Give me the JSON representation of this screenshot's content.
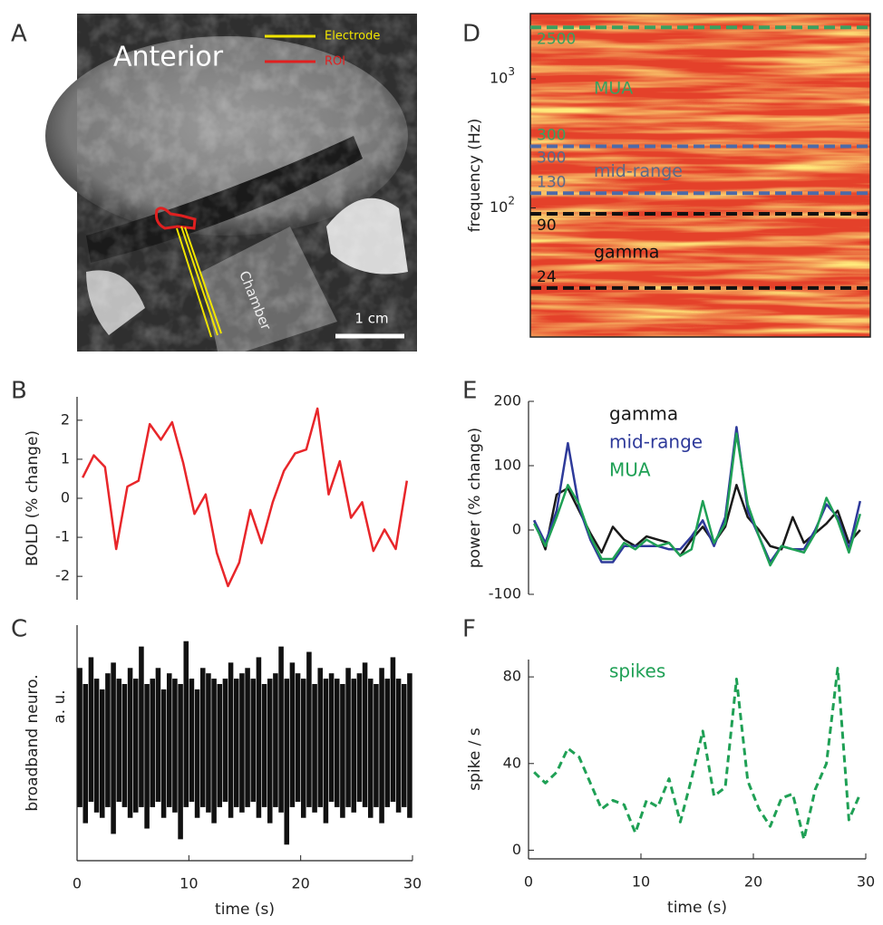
{
  "chart_data": [
    {
      "type": "image",
      "panel_label": "A",
      "title": "Anterior",
      "legend": [
        {
          "name": "Electrode",
          "color": "#f0e400"
        },
        {
          "name": "ROI",
          "color": "#e02020"
        }
      ],
      "annotation": "Chamber",
      "scale_bar": "1 cm"
    },
    {
      "type": "line",
      "panel_label": "B",
      "ylabel": "BOLD (% change)",
      "color": "#e8262a",
      "x": [
        0.5,
        1.5,
        2.5,
        3.5,
        4.5,
        5.5,
        6.5,
        7.5,
        8.5,
        9.5,
        10.5,
        11.5,
        12.5,
        13.5,
        14.5,
        15.5,
        16.5,
        17.5,
        18.5,
        19.5,
        20.5,
        21.5,
        22.5,
        23.5,
        24.5,
        25.5,
        26.5,
        27.5,
        28.5,
        29.5
      ],
      "values": [
        0.53,
        1.1,
        0.8,
        -1.3,
        0.3,
        0.45,
        1.9,
        1.5,
        1.95,
        0.9,
        -0.4,
        0.1,
        -1.4,
        -2.25,
        -1.65,
        -0.3,
        -1.15,
        -0.1,
        0.7,
        1.15,
        1.25,
        2.3,
        0.1,
        0.95,
        -0.5,
        -0.1,
        -1.35,
        -0.8,
        -1.3,
        0.45
      ],
      "xlim": [
        0,
        30
      ],
      "ylim": [
        -2.6,
        2.6
      ],
      "yticks": [
        -2,
        -1,
        0,
        1,
        2
      ]
    },
    {
      "type": "range",
      "panel_label": "C",
      "ylabel": "broadband neuro.",
      "unit_label": "a. u.",
      "xlabel": "time (s)",
      "color": "#111111",
      "x": [
        0.25,
        0.75,
        1.25,
        1.75,
        2.25,
        2.75,
        3.25,
        3.75,
        4.25,
        4.75,
        5.25,
        5.75,
        6.25,
        6.75,
        7.25,
        7.75,
        8.25,
        8.75,
        9.25,
        9.75,
        10.25,
        10.75,
        11.25,
        11.75,
        12.25,
        12.75,
        13.25,
        13.75,
        14.25,
        14.75,
        15.25,
        15.75,
        16.25,
        16.75,
        17.25,
        17.75,
        18.25,
        18.75,
        19.25,
        19.75,
        20.25,
        20.75,
        21.25,
        21.75,
        22.25,
        22.75,
        23.25,
        23.75,
        24.25,
        24.75,
        25.25,
        25.75,
        26.25,
        26.75,
        27.25,
        27.75,
        28.25,
        28.75,
        29.25,
        29.75
      ],
      "high": [
        0.7,
        0.55,
        0.8,
        0.6,
        0.5,
        0.65,
        0.75,
        0.6,
        0.55,
        0.7,
        0.6,
        0.9,
        0.55,
        0.6,
        0.7,
        0.5,
        0.65,
        0.6,
        0.55,
        0.95,
        0.6,
        0.5,
        0.7,
        0.65,
        0.6,
        0.55,
        0.6,
        0.75,
        0.6,
        0.65,
        0.7,
        0.6,
        0.8,
        0.55,
        0.6,
        0.65,
        0.9,
        0.6,
        0.75,
        0.65,
        0.6,
        0.85,
        0.55,
        0.7,
        0.6,
        0.65,
        0.6,
        0.55,
        0.7,
        0.6,
        0.65,
        0.75,
        0.6,
        0.55,
        0.7,
        0.6,
        0.8,
        0.6,
        0.55,
        0.65
      ],
      "low": [
        -0.6,
        -0.75,
        -0.55,
        -0.65,
        -0.7,
        -0.6,
        -0.85,
        -0.55,
        -0.6,
        -0.7,
        -0.65,
        -0.6,
        -0.8,
        -0.6,
        -0.55,
        -0.7,
        -0.6,
        -0.65,
        -0.9,
        -0.6,
        -0.55,
        -0.7,
        -0.6,
        -0.65,
        -0.75,
        -0.6,
        -0.55,
        -0.7,
        -0.6,
        -0.65,
        -0.6,
        -0.55,
        -0.7,
        -0.6,
        -0.75,
        -0.6,
        -0.65,
        -0.95,
        -0.6,
        -0.55,
        -0.7,
        -0.6,
        -0.65,
        -0.6,
        -0.75,
        -0.55,
        -0.6,
        -0.7,
        -0.6,
        -0.65,
        -0.55,
        -0.6,
        -0.7,
        -0.6,
        -0.75,
        -0.6,
        -0.55,
        -0.65,
        -0.6,
        -0.7
      ],
      "xlim": [
        0,
        30
      ],
      "ylim": [
        -1.1,
        1.1
      ],
      "xticks": [
        0,
        10,
        20,
        30
      ]
    },
    {
      "type": "heatmap",
      "panel_label": "D",
      "ylabel": "frequency (Hz)",
      "log_y": true,
      "ylim": [
        10,
        3200
      ],
      "yticks": [
        {
          "value": 100,
          "label": "10",
          "exponent": "2"
        },
        {
          "value": 1000,
          "label": "10",
          "exponent": "3"
        }
      ],
      "bands": [
        {
          "name": "MUA",
          "lower": 300,
          "upper": 2500,
          "color": "#3aa060",
          "text_color": "#3aa060"
        },
        {
          "name": "mid-range",
          "lower": 130,
          "upper": 300,
          "color": "#4d6aa8",
          "text_color": "#5a6a8a"
        },
        {
          "name": "gamma",
          "lower": 24,
          "upper": 90,
          "color": "#111111",
          "text_color": "#111111"
        }
      ]
    },
    {
      "type": "line",
      "panel_label": "E",
      "ylabel": "power (% change)",
      "x": [
        0.5,
        1.5,
        2.5,
        3.5,
        4.5,
        5.5,
        6.5,
        7.5,
        8.5,
        9.5,
        10.5,
        11.5,
        12.5,
        13.5,
        14.5,
        15.5,
        16.5,
        17.5,
        18.5,
        19.5,
        20.5,
        21.5,
        22.5,
        23.5,
        24.5,
        25.5,
        26.5,
        27.5,
        28.5,
        29.5
      ],
      "series": [
        {
          "name": "gamma",
          "color": "#1a1a1a",
          "values": [
            15,
            -30,
            55,
            65,
            30,
            -5,
            -35,
            5,
            -15,
            -25,
            -10,
            -15,
            -20,
            -40,
            -15,
            5,
            -20,
            5,
            70,
            20,
            0,
            -25,
            -30,
            20,
            -20,
            -5,
            10,
            30,
            -20,
            0
          ]
        },
        {
          "name": "mid-range",
          "color": "#2e3a9a",
          "values": [
            15,
            -20,
            30,
            135,
            35,
            -15,
            -50,
            -50,
            -25,
            -25,
            -25,
            -25,
            -30,
            -30,
            -10,
            15,
            -25,
            20,
            160,
            30,
            -10,
            -50,
            -25,
            -30,
            -30,
            0,
            40,
            20,
            -30,
            45
          ]
        },
        {
          "name": "MUA",
          "color": "#1fa055",
          "values": [
            10,
            -25,
            20,
            70,
            40,
            -10,
            -45,
            -45,
            -20,
            -30,
            -15,
            -25,
            -20,
            -40,
            -30,
            45,
            -20,
            10,
            150,
            40,
            -10,
            -55,
            -25,
            -30,
            -35,
            -5,
            50,
            15,
            -35,
            25
          ]
        }
      ],
      "xlim": [
        0,
        30
      ],
      "ylim": [
        -100,
        200
      ],
      "yticks": [
        -100,
        0,
        100,
        200
      ]
    },
    {
      "type": "line",
      "panel_label": "F",
      "ylabel": "spike / s",
      "xlabel": "time (s)",
      "line_style": "dashed",
      "x": [
        0.5,
        1.5,
        2.5,
        3.5,
        4.5,
        5.5,
        6.5,
        7.5,
        8.5,
        9.5,
        10.5,
        11.5,
        12.5,
        13.5,
        14.5,
        15.5,
        16.5,
        17.5,
        18.5,
        19.5,
        20.5,
        21.5,
        22.5,
        23.5,
        24.5,
        25.5,
        26.5,
        27.5,
        28.5,
        29.5
      ],
      "series": [
        {
          "name": "spikes",
          "color": "#1fa055",
          "values": [
            36,
            31,
            36,
            47,
            43,
            31,
            19,
            23,
            21,
            8,
            23,
            20,
            33,
            13,
            33,
            55,
            25,
            29,
            79,
            32,
            19,
            11,
            24,
            26,
            5,
            28,
            40,
            84,
            14,
            26
          ]
        }
      ],
      "xlim": [
        0,
        30
      ],
      "ylim": [
        -4,
        88
      ],
      "xticks": [
        0,
        10,
        20,
        30
      ],
      "yticks": [
        0,
        40,
        80
      ]
    }
  ]
}
